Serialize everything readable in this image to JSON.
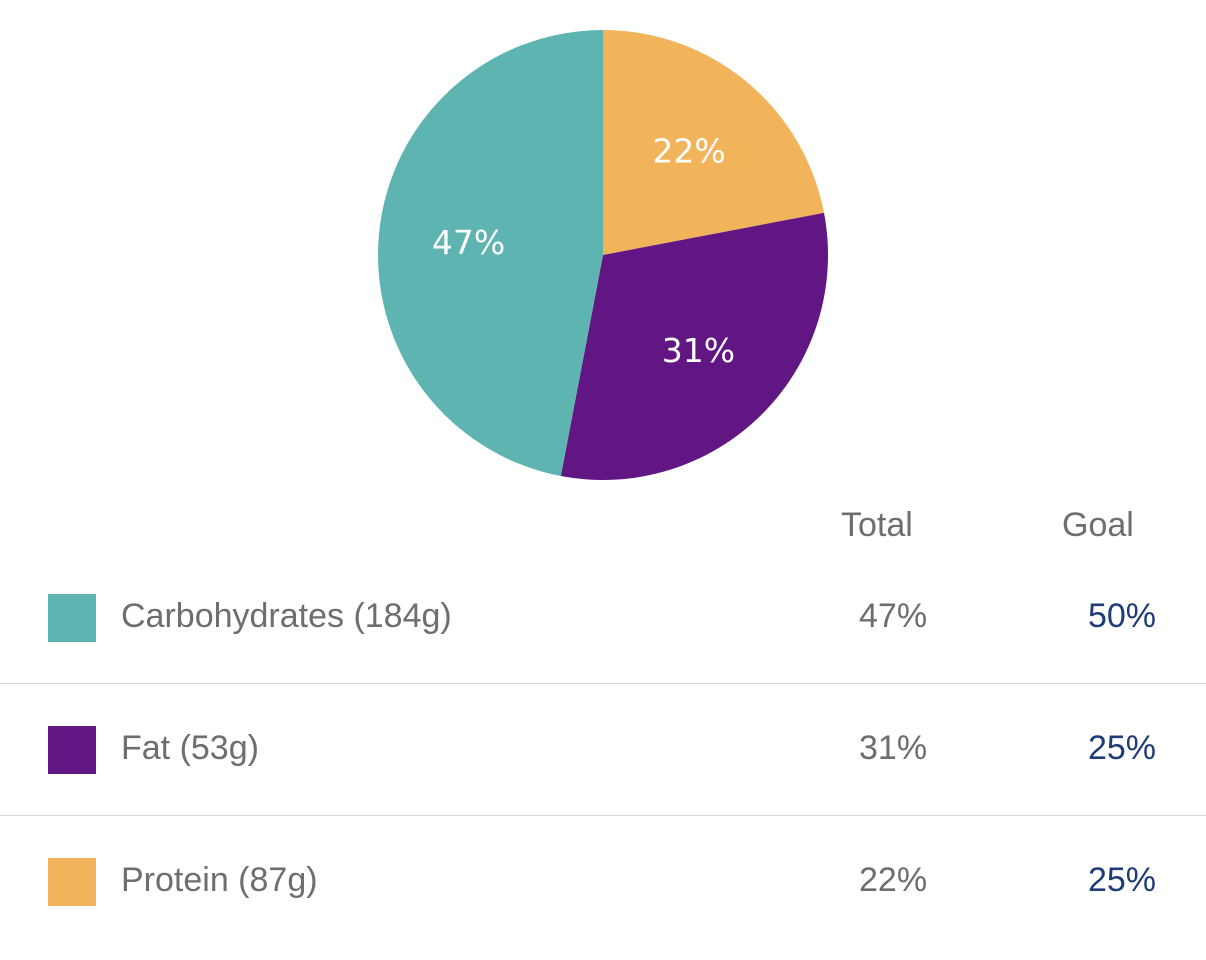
{
  "chart_data": {
    "type": "pie",
    "slices": [
      {
        "label": "Protein (87g)",
        "value": 22,
        "display": "22%",
        "color": "#F2B45A"
      },
      {
        "label": "Fat (53g)",
        "value": 31,
        "display": "31%",
        "color": "#621684"
      },
      {
        "label": "Carbohydrates (184g)",
        "value": 47,
        "display": "47%",
        "color": "#5EB4B0"
      }
    ]
  },
  "table": {
    "header_total": "Total",
    "header_goal": "Goal",
    "rows": [
      {
        "name": "Carbohydrates (184g)",
        "total": "47%",
        "goal": "50%",
        "color": "#5EB4B0"
      },
      {
        "name": "Fat (53g)",
        "total": "31%",
        "goal": "25%",
        "color": "#621684"
      },
      {
        "name": "Protein (87g)",
        "total": "22%",
        "goal": "25%",
        "color": "#F2B45A"
      }
    ]
  },
  "colors": {
    "goal_text": "#1F3C78",
    "muted_text": "#6D6D72"
  }
}
